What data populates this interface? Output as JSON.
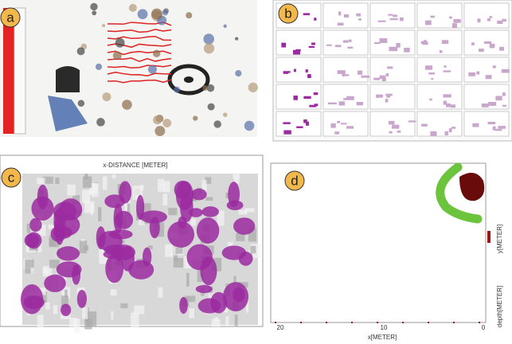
{
  "panels": [
    {
      "label": "a"
    },
    {
      "label": "b"
    },
    {
      "label": "c",
      "axis_title": "x-DISTANCE [METER]"
    },
    {
      "label": "d",
      "x_ticks": [
        "20",
        "10",
        "0"
      ],
      "x_axis_title": "x[METER]",
      "y_axis_title": "y[METER]",
      "depth_axis_title": "depth[METER]"
    }
  ]
}
